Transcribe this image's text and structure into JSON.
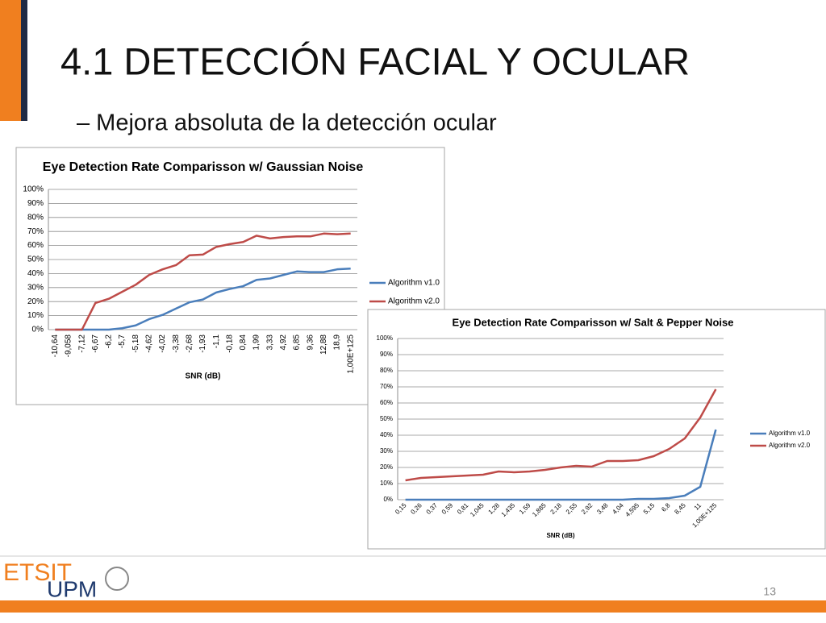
{
  "slide": {
    "title": "4.1  DETECCIÓN FACIAL Y OCULAR",
    "subtitle": "– Mejora absoluta de la detección ocular",
    "page_number": "13",
    "logo": [
      "ETSIT",
      "UPM"
    ]
  },
  "chart_data": [
    {
      "type": "line",
      "title": "Eye Detection Rate Comparisson w/ Gaussian Noise",
      "x_label": "SNR (dB)",
      "categories": [
        "-10,64",
        "-9,058",
        "-7,12",
        "-6,67",
        "-6,2",
        "-5,7",
        "-5,18",
        "-4,62",
        "-4,02",
        "-3,38",
        "-2,68",
        "-1,93",
        "-1,1",
        "-0,18",
        "0,84",
        "1,99",
        "3,33",
        "4,92",
        "6,85",
        "9,36",
        "12,88",
        "18,9",
        "1,00E+125"
      ],
      "series": [
        {
          "name": "Algorithm v1.0",
          "color": "#4a7ebb",
          "values": [
            0,
            0,
            0,
            0,
            0,
            1,
            3,
            7.5,
            10.5,
            15,
            19.5,
            21.5,
            26.5,
            29,
            31,
            35.5,
            36.5,
            39,
            41.5,
            41,
            41,
            43,
            43.5
          ]
        },
        {
          "name": "Algorithm v2.0",
          "color": "#be4b48",
          "values": [
            0,
            0,
            0,
            19,
            22,
            27,
            32,
            39,
            43,
            46,
            53,
            53.5,
            59,
            61,
            62.5,
            67,
            65,
            66,
            66.5,
            66.5,
            68.5,
            68,
            68.5
          ]
        }
      ],
      "ylim": [
        0,
        100
      ],
      "yticks": [
        {
          "value": 0,
          "label": "0%"
        },
        {
          "value": 10,
          "label": "10%"
        },
        {
          "value": 20,
          "label": "20%"
        },
        {
          "value": 30,
          "label": "30%"
        },
        {
          "value": 40,
          "label": "40%"
        },
        {
          "value": 50,
          "label": "50%"
        },
        {
          "value": 60,
          "label": "60%"
        },
        {
          "value": 70,
          "label": "70%"
        },
        {
          "value": 80,
          "label": "80%"
        },
        {
          "value": 90,
          "label": "90%"
        },
        {
          "value": 100,
          "label": "100%"
        }
      ],
      "grid": true,
      "legend": "right"
    },
    {
      "type": "line",
      "title": "Eye Detection Rate Comparisson w/ Salt & Pepper Noise",
      "x_label": "SNR (dB)",
      "categories": [
        "0,15",
        "0,26",
        "0,37",
        "0,59",
        "0,81",
        "1,045",
        "1,28",
        "1,435",
        "1,59",
        "1,885",
        "2,18",
        "2,55",
        "2,92",
        "3,48",
        "4,04",
        "4,595",
        "5,15",
        "6,8",
        "8,45",
        "11",
        "1,00E+125"
      ],
      "series": [
        {
          "name": "Algorithm v1.0",
          "color": "#4a7ebb",
          "values": [
            0,
            0,
            0,
            0,
            0,
            0,
            0,
            0,
            0,
            0,
            0,
            0,
            0,
            0,
            0,
            0.5,
            0.5,
            1,
            2.5,
            8,
            43.5
          ]
        },
        {
          "name": "Algorithm v2.0",
          "color": "#be4b48",
          "values": [
            12,
            13.5,
            14,
            14.5,
            15,
            15.5,
            17.5,
            17,
            17.5,
            18.5,
            20,
            21,
            20.5,
            24,
            24,
            24.5,
            27,
            31.5,
            38,
            51,
            68.5
          ]
        }
      ],
      "ylim": [
        0,
        100
      ],
      "yticks": [
        {
          "value": 0,
          "label": "0%"
        },
        {
          "value": 10,
          "label": "10%"
        },
        {
          "value": 20,
          "label": "20%"
        },
        {
          "value": 30,
          "label": "30%"
        },
        {
          "value": 40,
          "label": "40%"
        },
        {
          "value": 50,
          "label": "50%"
        },
        {
          "value": 60,
          "label": "60%"
        },
        {
          "value": 70,
          "label": "70%"
        },
        {
          "value": 80,
          "label": "80%"
        },
        {
          "value": 90,
          "label": "90%"
        },
        {
          "value": 100,
          "label": "100%"
        }
      ],
      "grid": true,
      "legend": "right"
    }
  ]
}
